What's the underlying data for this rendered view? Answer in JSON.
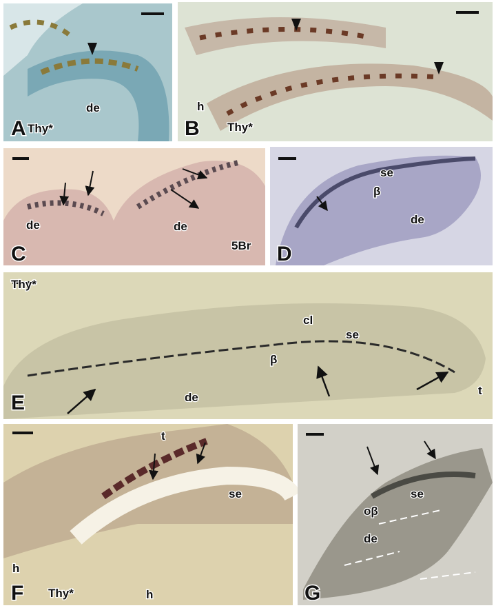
{
  "panels": [
    {
      "letter": "A",
      "labels": [
        "de",
        "Thy*"
      ]
    },
    {
      "letter": "B",
      "labels": [
        "h",
        "Thy*"
      ]
    },
    {
      "letter": "C",
      "labels": [
        "de",
        "de",
        "5Br"
      ]
    },
    {
      "letter": "D",
      "labels": [
        "se",
        "β",
        "de"
      ]
    },
    {
      "letter": "E",
      "labels": [
        "Thy*",
        "cl",
        "se",
        "β",
        "de",
        "t"
      ]
    },
    {
      "letter": "F",
      "labels": [
        "t",
        "se",
        "h",
        "Thy*",
        "h"
      ]
    },
    {
      "letter": "G",
      "labels": [
        "se",
        "oβ",
        "de"
      ]
    }
  ]
}
